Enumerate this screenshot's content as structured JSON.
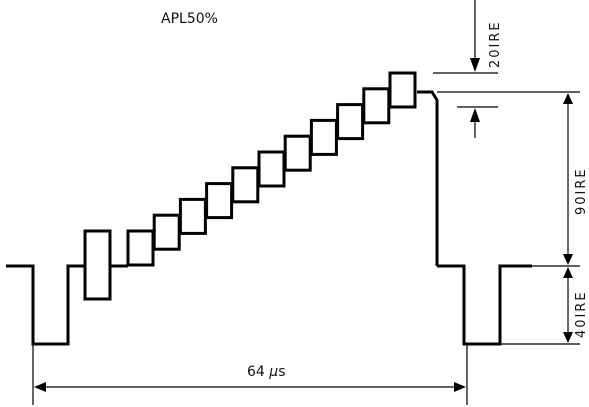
{
  "title": "APL50%",
  "labels": {
    "period_number": "64 ",
    "period_unit_mu": "μ",
    "period_unit_s": "s",
    "level_20": "20IRE",
    "level_90": "90IRE",
    "level_40": "40IRE"
  }
}
